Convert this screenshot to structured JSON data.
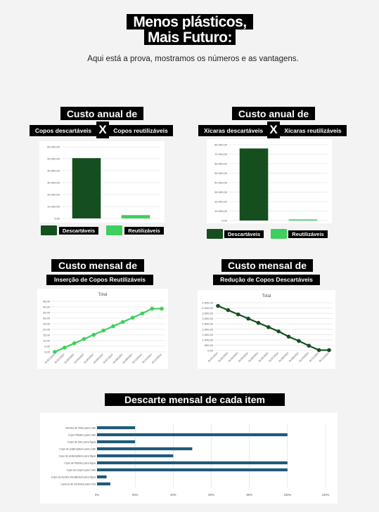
{
  "header": {
    "title_line1": "Menos plásticos,",
    "title_line2": "Mais Futuro:",
    "subtitle": "Aqui está a prova, mostramos os números e as vantagens."
  },
  "colors": {
    "dark_green": "#154f1f",
    "light_green": "#3ecf5c",
    "bar_blue": "#1f5a7a",
    "background": "#f3f3f3"
  },
  "sections": {
    "annual_cups": {
      "heading": "Custo anual de",
      "left": "Copos descartáveis",
      "x": "X",
      "right": "Copos reutilizáveis"
    },
    "annual_mugs": {
      "heading": "Custo anual de",
      "left": "Xícaras descartáveis",
      "x": "X",
      "right": "Xícaras reutilizáveis"
    },
    "monthly_insert": {
      "heading": "Custo mensal de",
      "sub": "Inserção de Copos Reutilizáveis"
    },
    "monthly_reduce": {
      "heading": "Custo mensal de",
      "sub": "Redução de Copos Descartáveis"
    },
    "discard": {
      "heading": "Descarte mensal de cada item"
    }
  },
  "chart_data": [
    {
      "type": "bar",
      "categories": [
        "Descartáveis",
        "Reutilizáveis"
      ],
      "values": [
        50500,
        2800
      ],
      "colors": [
        "#154f1f",
        "#3ecf5c"
      ],
      "yticks": [
        "0,00",
        "10.000,00",
        "20.000,00",
        "30.000,00",
        "40.000,00",
        "50.000,00",
        "60.000,00"
      ],
      "ylim": [
        0,
        60000
      ],
      "grid": true,
      "legend": "bottom"
    },
    {
      "type": "bar",
      "categories": [
        "Descartáveis",
        "Reutilizáveis"
      ],
      "values": [
        76000,
        1200
      ],
      "colors": [
        "#154f1f",
        "#3ecf5c"
      ],
      "yticks": [
        "0,00",
        "10.000,00",
        "20.000,00",
        "30.000,00",
        "40.000,00",
        "50.000,00",
        "60.000,00",
        "70.000,00",
        "80.000,00"
      ],
      "ylim": [
        0,
        80000
      ],
      "grid": true,
      "legend": "bottom"
    },
    {
      "type": "line",
      "title": "Total",
      "x": [
        "01/01/2024",
        "01/02/2024",
        "01/03/2024",
        "01/04/2024",
        "01/05/2024",
        "01/06/2024",
        "01/07/2024",
        "01/08/2024",
        "01/09/2024",
        "01/10/2024",
        "01/11/2024",
        "01/12/2024"
      ],
      "values": [
        0,
        3.8,
        7.6,
        11.4,
        15.2,
        19,
        22.8,
        26.6,
        30.4,
        34.2,
        38.4,
        38.4
      ],
      "yticks": [
        "0,00",
        "5,00",
        "10,00",
        "15,00",
        "20,00",
        "25,00",
        "30,00",
        "35,00",
        "40,00",
        "45,00"
      ],
      "ylim": [
        0,
        45
      ],
      "color": "#3ecf5c",
      "grid": true
    },
    {
      "type": "line",
      "title": "Total",
      "x": [
        "01/01/2024",
        "01/02/2024",
        "01/03/2024",
        "01/04/2024",
        "01/05/2024",
        "01/06/2024",
        "01/07/2024",
        "01/08/2024",
        "01/09/2024",
        "01/10/2024",
        "01/11/2024",
        "01/12/2024"
      ],
      "values": [
        4200,
        3800,
        3400,
        3000,
        2600,
        2200,
        1800,
        1300,
        900,
        450,
        30,
        30
      ],
      "yticks": [
        "0,00",
        "500,00",
        "1.000,00",
        "1.500,00",
        "2.000,00",
        "2.500,00",
        "3.000,00",
        "3.500,00",
        "4.000,00",
        "4.500,00"
      ],
      "ylim": [
        0,
        4500
      ],
      "color": "#154f1f",
      "grid": true
    },
    {
      "type": "bar",
      "orientation": "horizontal",
      "categories": [
        "Bomba de Vidro para Café",
        "Copo Plástico para Café",
        "Copo de vidro para Água",
        "Copo de polipropileno para Café",
        "Copo de polipropileno para Água",
        "Copo de Plástico para Água",
        "Copo de Isopor para Café",
        "Copo de Acrílico Reutilizável para Água",
        "Caneca de Cerâmica para Chá"
      ],
      "values": [
        20,
        100,
        20,
        50,
        40,
        100,
        100,
        5,
        7
      ],
      "xticks": [
        "0%",
        "20%",
        "40%",
        "60%",
        "80%",
        "100%",
        "120%"
      ],
      "xlim": [
        0,
        120
      ],
      "color": "#1f5a7a",
      "grid": true
    }
  ]
}
